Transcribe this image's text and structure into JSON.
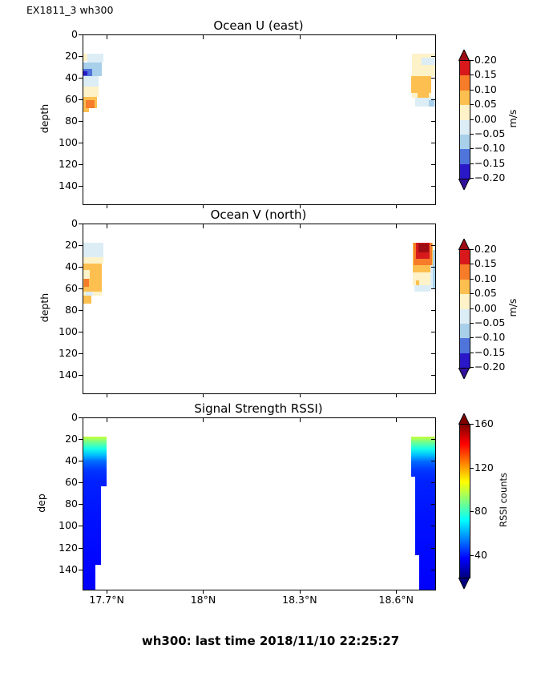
{
  "figure_label": "EX1811_3 wh300",
  "footer": "wh300: last time 2018/11/10 22:25:27",
  "colormap_velocity": {
    "levels": [
      -0.2,
      -0.15,
      -0.1,
      -0.05,
      0.0,
      0.05,
      0.1,
      0.15,
      0.2
    ],
    "colors": [
      "#2a18c8",
      "#4f74dc",
      "#a9d0ea",
      "#dcedf6",
      "#fdf2c8",
      "#fdc050",
      "#f67c2a",
      "#d7191c"
    ],
    "under": "#31119c",
    "over": "#9e0d13"
  },
  "chart_data": [
    {
      "type": "pcolor",
      "title": "Ocean U (east)",
      "ylabel": "depth",
      "xlim": [
        17.625,
        18.719
      ],
      "ylim": [
        0,
        156
      ],
      "yticks": [
        0,
        20,
        40,
        60,
        80,
        100,
        120,
        140
      ],
      "colorbar": {
        "label": "m/s",
        "vmin": -0.2,
        "vmax": 0.2,
        "tick_labels": [
          "0.20",
          "0.15",
          "0.10",
          "0.05",
          "0.00",
          "−0.05",
          "−0.10",
          "−0.15",
          "−0.20"
        ]
      },
      "cells": [
        {
          "x": [
            17.625,
            17.637
          ],
          "d": [
            17,
            24
          ],
          "v": 0.02
        },
        {
          "x": [
            17.637,
            17.687
          ],
          "d": [
            17,
            25
          ],
          "v": -0.03
        },
        {
          "x": [
            17.625,
            17.682
          ],
          "d": [
            25,
            38
          ],
          "v": -0.07
        },
        {
          "x": [
            17.625,
            17.652
          ],
          "d": [
            31,
            39
          ],
          "v": -0.13
        },
        {
          "x": [
            17.625,
            17.637
          ],
          "d": [
            33,
            37
          ],
          "v": -0.17
        },
        {
          "x": [
            17.625,
            17.672
          ],
          "d": [
            38,
            47
          ],
          "v": -0.03
        },
        {
          "x": [
            17.625,
            17.672
          ],
          "d": [
            47,
            57
          ],
          "v": 0.02
        },
        {
          "x": [
            17.625,
            17.667
          ],
          "d": [
            57,
            67
          ],
          "v": 0.07
        },
        {
          "x": [
            17.632,
            17.66
          ],
          "d": [
            60,
            67
          ],
          "v": 0.12
        },
        {
          "x": [
            17.625,
            17.642
          ],
          "d": [
            67,
            71
          ],
          "v": 0.07
        },
        {
          "x": [
            18.647,
            18.719
          ],
          "d": [
            17,
            27
          ],
          "v": 0.02
        },
        {
          "x": [
            18.677,
            18.719
          ],
          "d": [
            21,
            27
          ],
          "v": -0.03
        },
        {
          "x": [
            18.647,
            18.719
          ],
          "d": [
            27,
            38
          ],
          "v": 0.02
        },
        {
          "x": [
            18.645,
            18.707
          ],
          "d": [
            38,
            53
          ],
          "v": 0.07
        },
        {
          "x": [
            18.647,
            18.707
          ],
          "d": [
            53,
            58
          ],
          "v": 0.02
        },
        {
          "x": [
            18.664,
            18.7
          ],
          "d": [
            53,
            58
          ],
          "v": 0.07
        },
        {
          "x": [
            18.657,
            18.719
          ],
          "d": [
            58,
            66
          ],
          "v": -0.03
        },
        {
          "x": [
            18.7,
            18.717
          ],
          "d": [
            60,
            66
          ],
          "v": -0.07
        }
      ]
    },
    {
      "type": "pcolor",
      "title": "Ocean V (north)",
      "ylabel": "depth",
      "xlim": [
        17.625,
        18.719
      ],
      "ylim": [
        0,
        156
      ],
      "yticks": [
        0,
        20,
        40,
        60,
        80,
        100,
        120,
        140
      ],
      "colorbar": {
        "label": "m/s",
        "vmin": -0.2,
        "vmax": 0.2,
        "tick_labels": [
          "0.20",
          "0.15",
          "0.10",
          "0.05",
          "0.00",
          "−0.05",
          "−0.10",
          "−0.15",
          "−0.20"
        ]
      },
      "cells": [
        {
          "x": [
            17.625,
            17.687
          ],
          "d": [
            17,
            30
          ],
          "v": -0.03
        },
        {
          "x": [
            17.625,
            17.687
          ],
          "d": [
            30,
            36
          ],
          "v": 0.02
        },
        {
          "x": [
            17.625,
            17.682
          ],
          "d": [
            36,
            62
          ],
          "v": 0.07
        },
        {
          "x": [
            17.625,
            17.645
          ],
          "d": [
            42,
            50
          ],
          "v": 0.02
        },
        {
          "x": [
            17.627,
            17.642
          ],
          "d": [
            50,
            58
          ],
          "v": 0.12
        },
        {
          "x": [
            17.625,
            17.682
          ],
          "d": [
            62,
            66
          ],
          "v": 0.02
        },
        {
          "x": [
            17.632,
            17.655
          ],
          "d": [
            62,
            66
          ],
          "v": -0.03
        },
        {
          "x": [
            17.625,
            17.65
          ],
          "d": [
            66,
            73
          ],
          "v": 0.07
        },
        {
          "x": [
            18.65,
            18.712
          ],
          "d": [
            17,
            44
          ],
          "v": 0.07
        },
        {
          "x": [
            18.652,
            18.71
          ],
          "d": [
            17,
            38
          ],
          "v": 0.12
        },
        {
          "x": [
            18.66,
            18.702
          ],
          "d": [
            17,
            32
          ],
          "v": 0.18
        },
        {
          "x": [
            18.666,
            18.698
          ],
          "d": [
            18,
            26
          ],
          "v": 0.22
        },
        {
          "x": [
            18.65,
            18.712
          ],
          "d": [
            44,
            56
          ],
          "v": 0.02
        },
        {
          "x": [
            18.712,
            18.719
          ],
          "d": [
            24,
            60
          ],
          "v": -0.07
        },
        {
          "x": [
            18.705,
            18.712
          ],
          "d": [
            38,
            60
          ],
          "v": -0.03
        },
        {
          "x": [
            18.66,
            18.67
          ],
          "d": [
            52,
            56
          ],
          "v": 0.07
        },
        {
          "x": [
            18.655,
            18.705
          ],
          "d": [
            56,
            62
          ],
          "v": -0.03
        }
      ]
    },
    {
      "type": "pcolor",
      "title": "Signal Strength RSSI)",
      "ylabel": "dep",
      "xlim": [
        17.625,
        18.719
      ],
      "ylim": [
        0,
        158
      ],
      "yticks": [
        0,
        20,
        40,
        60,
        80,
        100,
        120,
        140
      ],
      "xticks": [
        {
          "value": 17.7,
          "label": "17.7°N"
        },
        {
          "value": 18.0,
          "label": "18°N"
        },
        {
          "value": 18.3,
          "label": "18.3°N"
        },
        {
          "value": 18.6,
          "label": "18.6°N"
        }
      ],
      "colorbar": {
        "label": "RSSI counts",
        "vmin": 20,
        "vmax": 160,
        "ticks": [
          40,
          80,
          120,
          160
        ]
      },
      "columns": [
        {
          "x": [
            17.625,
            17.697
          ],
          "d": [
            17,
            63
          ]
        },
        {
          "x": [
            17.625,
            17.68
          ],
          "d": [
            63,
            135
          ]
        },
        {
          "x": [
            17.625,
            17.662
          ],
          "d": [
            135,
            158
          ]
        },
        {
          "x": [
            18.645,
            18.719
          ],
          "d": [
            17,
            54
          ]
        },
        {
          "x": [
            18.657,
            18.719
          ],
          "d": [
            54,
            126
          ]
        },
        {
          "x": [
            18.669,
            18.719
          ],
          "d": [
            126,
            158
          ]
        }
      ],
      "profile": [
        [
          17,
          100
        ],
        [
          22,
          88
        ],
        [
          28,
          76
        ],
        [
          34,
          64
        ],
        [
          40,
          52
        ],
        [
          48,
          45
        ],
        [
          58,
          42
        ],
        [
          90,
          40
        ],
        [
          158,
          37
        ]
      ]
    }
  ]
}
